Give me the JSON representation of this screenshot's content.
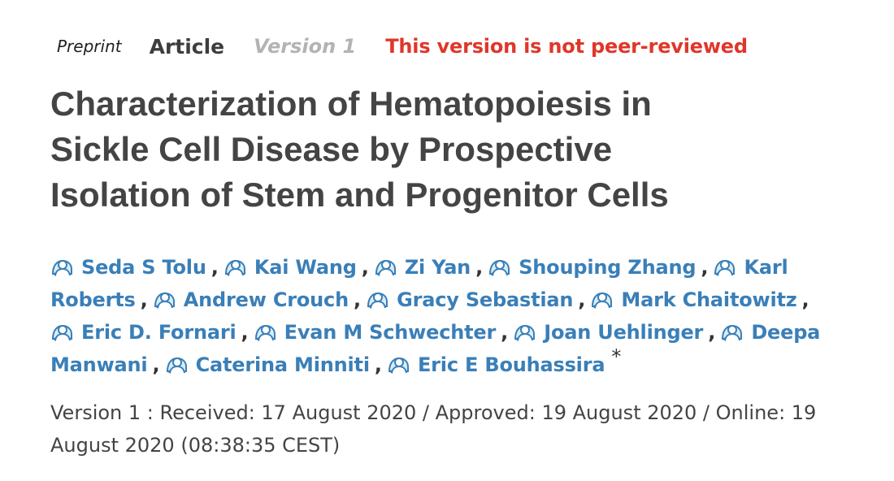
{
  "meta": {
    "preprint_label": "Preprint",
    "type_label": "Article",
    "version_label": "Version 1",
    "review_status": "This version is not peer-reviewed"
  },
  "title": {
    "lines": [
      "Characterization of Hematopoiesis in",
      "Sickle Cell Disease by Prospective",
      "Isolation of Stem and Progenitor Cells"
    ]
  },
  "authors": [
    {
      "name": "Seda S Tolu",
      "icon": "orcid-person-icon"
    },
    {
      "name": "Kai Wang",
      "icon": "orcid-person-icon"
    },
    {
      "name": "Zi Yan",
      "icon": "orcid-person-icon"
    },
    {
      "name": "Shouping Zhang",
      "icon": "orcid-person-icon"
    },
    {
      "name_part1": "Karl",
      "name_part2": "Roberts",
      "icon": "orcid-person-icon"
    },
    {
      "name": "Andrew Crouch",
      "icon": "orcid-person-icon"
    },
    {
      "name": "Gracy Sebastian",
      "icon": "orcid-person-icon"
    },
    {
      "name": "Mark Chaitowitz",
      "icon": "orcid-person-icon"
    },
    {
      "name": "Eric D. Fornari",
      "icon": "orcid-person-icon"
    },
    {
      "name": "Evan M Schwechter",
      "icon": "orcid-person-icon"
    },
    {
      "name": "Joan Uehlinger",
      "icon": "orcid-person-icon"
    },
    {
      "name_part1": "Deepa",
      "name_part2": "Manwani",
      "icon": "orcid-person-icon"
    },
    {
      "name": "Caterina Minniti",
      "icon": "orcid-person-icon"
    },
    {
      "name": "Eric E Bouhassira",
      "icon": "orcid-person-icon"
    }
  ],
  "separator": ",",
  "corresponding_marker": "*",
  "dates": {
    "line1": "Version 1 : Received: 17 August 2020 / Approved: 19 August 2020 / Online: 19",
    "line2": "August 2020 (08:38:35 CEST)"
  },
  "colors": {
    "author_link": "#3a7fb8",
    "warning": "#e0362a",
    "version_muted": "#b3b3b3",
    "title": "#444444"
  }
}
